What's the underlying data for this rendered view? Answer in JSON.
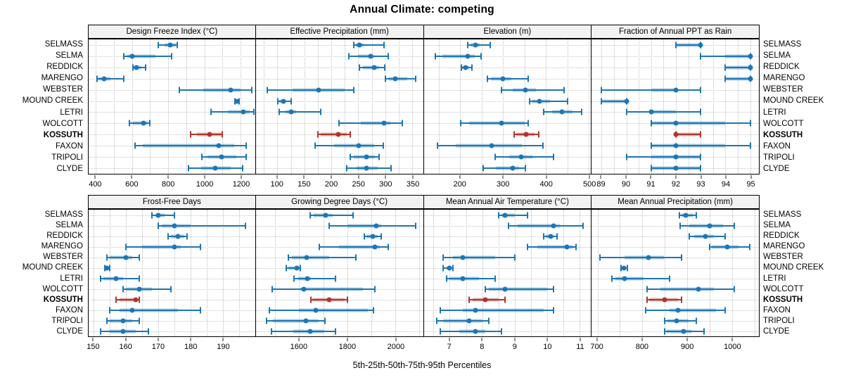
{
  "title": "Annual Climate: competing",
  "caption": "5th-25th-50th-75th-95th Percentiles",
  "percentile_labels": [
    "5th",
    "25th",
    "50th",
    "75th",
    "95th"
  ],
  "sites": [
    "SELMASS",
    "SELMA",
    "REDDICK",
    "MARENGO",
    "WEBSTER",
    "MOUND CREEK",
    "LETRI",
    "WOLCOTT",
    "KOSSUTH",
    "FAXON",
    "TRIPOLI",
    "CLYDE"
  ],
  "highlight_site": "KOSSUTH",
  "colors": {
    "series": "#1c76b4",
    "highlight": "#b0342c",
    "strip_bg": "#f2f2f2",
    "panel_border": "#000000",
    "grid": "#bdbdbd"
  },
  "chart_data": [
    {
      "type": "dotplot",
      "title": "Design Freeze Index (°C)",
      "row": 0,
      "col": 0,
      "xlim": [
        360,
        1280
      ],
      "ticks": [
        400,
        600,
        800,
        1000,
        1200
      ],
      "grid_step": 100,
      "series": [
        [
          745,
          780,
          810,
          840,
          850
        ],
        [
          555,
          575,
          600,
          730,
          820
        ],
        [
          605,
          610,
          625,
          650,
          675
        ],
        [
          408,
          415,
          445,
          480,
          555
        ],
        [
          860,
          995,
          1145,
          1200,
          1260
        ],
        [
          1170,
          1176,
          1181,
          1187,
          1192
        ],
        [
          1035,
          1128,
          1215,
          1248,
          1275
        ],
        [
          585,
          603,
          662,
          685,
          697
        ],
        [
          925,
          960,
          1028,
          1090,
          1100
        ],
        [
          615,
          660,
          1080,
          1165,
          1230
        ],
        [
          985,
          1015,
          1095,
          1175,
          1230
        ],
        [
          910,
          980,
          1060,
          1145,
          1210
        ]
      ]
    },
    {
      "type": "dotplot",
      "title": "Effective Precipitation (mm)",
      "row": 0,
      "col": 1,
      "xlim": [
        60,
        370
      ],
      "ticks": [
        100,
        150,
        200,
        250,
        300,
        350
      ],
      "grid_step": 25,
      "series": [
        [
          242,
          246,
          252,
          260,
          298
        ],
        [
          232,
          250,
          273,
          280,
          305
        ],
        [
          252,
          259,
          280,
          289,
          299
        ],
        [
          300,
          307,
          318,
          341,
          356
        ],
        [
          81,
          128,
          176,
          224,
          242
        ],
        [
          101,
          104,
          111,
          115,
          126
        ],
        [
          103,
          115,
          125,
          135,
          180
        ],
        [
          214,
          255,
          298,
          309,
          331
        ],
        [
          175,
          180,
          213,
          228,
          235
        ],
        [
          170,
          205,
          251,
          279,
          296
        ],
        [
          235,
          241,
          265,
          281,
          288
        ],
        [
          228,
          247,
          265,
          286,
          311
        ]
      ]
    },
    {
      "type": "dotplot",
      "title": "Elevation (m)",
      "row": 0,
      "col": 2,
      "xlim": [
        115,
        505
      ],
      "ticks": [
        200,
        300,
        400,
        500
      ],
      "grid_step": 50,
      "series": [
        [
          218,
          224,
          235,
          245,
          270
        ],
        [
          142,
          158,
          217,
          234,
          249
        ],
        [
          202,
          205,
          213,
          220,
          227
        ],
        [
          263,
          271,
          300,
          320,
          358
        ],
        [
          297,
          322,
          352,
          377,
          442
        ],
        [
          362,
          366,
          385,
          410,
          450
        ],
        [
          394,
          415,
          438,
          462,
          483
        ],
        [
          201,
          220,
          297,
          350,
          358
        ],
        [
          325,
          330,
          354,
          374,
          384
        ],
        [
          147,
          189,
          274,
          344,
          393
        ],
        [
          281,
          315,
          342,
          369,
          417
        ],
        [
          253,
          283,
          323,
          337,
          352
        ]
      ]
    },
    {
      "type": "dotplot",
      "title": "Fraction of Annual PPT as Rain",
      "row": 0,
      "col": 3,
      "xlim": [
        88.6,
        95.35
      ],
      "ticks": [
        89,
        90,
        91,
        92,
        93,
        94,
        95
      ],
      "grid_step": 0.5,
      "series": [
        [
          92,
          92,
          93,
          93,
          93
        ],
        [
          93,
          94,
          95,
          95,
          95
        ],
        [
          94,
          94,
          95,
          95,
          95
        ],
        [
          94,
          94,
          95,
          95,
          95
        ],
        [
          89,
          91,
          92,
          92,
          93
        ],
        [
          89,
          89,
          90,
          90,
          90
        ],
        [
          90,
          91,
          91,
          92,
          93
        ],
        [
          91,
          91,
          92,
          94,
          95
        ],
        [
          92,
          92,
          92,
          93,
          93
        ],
        [
          91,
          91,
          92,
          94,
          95
        ],
        [
          90,
          91,
          92,
          93,
          93
        ],
        [
          91,
          91,
          92,
          93,
          93
        ]
      ]
    },
    {
      "type": "dotplot",
      "title": "Frost-Free Days",
      "row": 1,
      "col": 0,
      "xlim": [
        148.4,
        200
      ],
      "ticks": [
        150,
        160,
        170,
        180,
        190
      ],
      "grid_step": 5,
      "series": [
        [
          168,
          169,
          170,
          172,
          175
        ],
        [
          170,
          171,
          175,
          180,
          197
        ],
        [
          173,
          174,
          176,
          178,
          179
        ],
        [
          160,
          165,
          175,
          177,
          183
        ],
        [
          154,
          155,
          160,
          162,
          164
        ],
        [
          153.5,
          154,
          154,
          154.5,
          155
        ],
        [
          152,
          153,
          157,
          159,
          164
        ],
        [
          159,
          160,
          164,
          168,
          174
        ],
        [
          157,
          158,
          163,
          163.5,
          164
        ],
        [
          155,
          158,
          162,
          176,
          183
        ],
        [
          154,
          155,
          159,
          162,
          164
        ],
        [
          152,
          155,
          159,
          163,
          167
        ]
      ]
    },
    {
      "type": "dotplot",
      "title": "Growing Degree Days (°C)",
      "row": 1,
      "col": 1,
      "xlim": [
        1420,
        2115
      ],
      "ticks": [
        1600,
        1800,
        2000
      ],
      "grid_step": 100,
      "series": [
        [
          1645,
          1660,
          1710,
          1740,
          1825
        ],
        [
          1725,
          1800,
          1920,
          1940,
          2085
        ],
        [
          1870,
          1880,
          1905,
          1925,
          1940
        ],
        [
          1685,
          1765,
          1915,
          1935,
          1970
        ],
        [
          1555,
          1570,
          1630,
          1725,
          1835
        ],
        [
          1545,
          1555,
          1590,
          1600,
          1605
        ],
        [
          1580,
          1595,
          1635,
          1650,
          1750
        ],
        [
          1487,
          1605,
          1620,
          1865,
          1915
        ],
        [
          1650,
          1655,
          1725,
          1790,
          1800
        ],
        [
          1475,
          1600,
          1670,
          1885,
          1910
        ],
        [
          1465,
          1490,
          1628,
          1680,
          1707
        ],
        [
          1485,
          1575,
          1645,
          1700,
          1750
        ]
      ]
    },
    {
      "type": "dotplot",
      "title": "Mean Annual Air Temperature (°C)",
      "row": 1,
      "col": 2,
      "xlim": [
        6.2,
        11.35
      ],
      "ticks": [
        7,
        8,
        9,
        10,
        11
      ],
      "grid_step": 0.5,
      "series": [
        [
          8.5,
          8.6,
          8.7,
          9.0,
          9.4
        ],
        [
          8.8,
          9.1,
          10.2,
          10.4,
          11.1
        ],
        [
          9.9,
          9.95,
          10.1,
          10.2,
          10.3
        ],
        [
          9.4,
          9.7,
          10.6,
          10.8,
          10.9
        ],
        [
          6.8,
          7.1,
          7.4,
          8.4,
          9.0
        ],
        [
          6.8,
          6.9,
          7.0,
          7.05,
          7.1
        ],
        [
          6.9,
          7.0,
          7.4,
          7.9,
          8.4
        ],
        [
          8.1,
          8.2,
          8.7,
          10.0,
          10.2
        ],
        [
          7.6,
          7.7,
          8.1,
          8.5,
          8.7
        ],
        [
          6.7,
          7.4,
          7.8,
          9.9,
          10.2
        ],
        [
          6.6,
          6.8,
          7.6,
          8.0,
          8.2
        ],
        [
          6.7,
          7.3,
          7.8,
          8.1,
          8.6
        ]
      ]
    },
    {
      "type": "dotplot",
      "title": "Mean Annual Precipitation (mm)",
      "row": 1,
      "col": 3,
      "xlim": [
        687,
        1060
      ],
      "ticks": [
        700,
        800,
        900,
        1000
      ],
      "grid_step": 50,
      "series": [
        [
          882,
          887,
          897,
          912,
          921
        ],
        [
          885,
          905,
          950,
          980,
          1005
        ],
        [
          905,
          915,
          940,
          960,
          985
        ],
        [
          950,
          955,
          990,
          1015,
          1040
        ],
        [
          705,
          760,
          813,
          848,
          888
        ],
        [
          753,
          756,
          759,
          763,
          766
        ],
        [
          732,
          740,
          760,
          803,
          860
        ],
        [
          810,
          840,
          925,
          960,
          1005
        ],
        [
          810,
          815,
          850,
          880,
          887
        ],
        [
          807,
          860,
          880,
          965,
          985
        ],
        [
          850,
          856,
          877,
          903,
          920
        ],
        [
          850,
          855,
          892,
          910,
          938
        ]
      ]
    }
  ]
}
